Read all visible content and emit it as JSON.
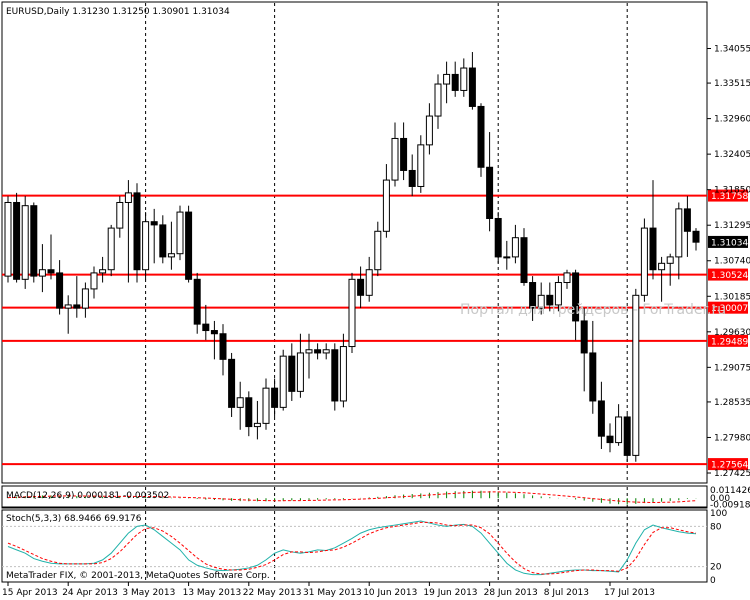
{
  "header": {
    "symbol_info": "EURUSD,Daily  1.31230 1.31250 1.30901 1.31034",
    "watermark": "Портал для трейдеров - ForTrader.ru",
    "copyright": "MetaTrader FIX, © 2001-2013, MetaQuotes Software Corp."
  },
  "colors": {
    "candle_up_fill": "#ffffff",
    "candle_down_fill": "#000000",
    "level_line": "#ff0000",
    "level_label_bg": "#ff0000",
    "current_price_bg": "#000000",
    "macd_hist": "#008000",
    "macd_signal": "#ff0000",
    "stoch_main": "#20b2aa",
    "stoch_signal": "#ff0000",
    "grid": "#000000"
  },
  "chart_data": [
    {
      "type": "candlestick",
      "title": "EURUSD,Daily",
      "ylim": [
        1.273,
        1.3475
      ],
      "y_ticks": [
        "1.34055",
        "1.33515",
        "1.32960",
        "1.32405",
        "1.31850",
        "1.31295",
        "1.30740",
        "1.30185",
        "1.29630",
        "1.29075",
        "1.28535",
        "1.27980",
        "1.27425"
      ],
      "y_tick_values": [
        1.34055,
        1.33515,
        1.3296,
        1.32405,
        1.3185,
        1.31295,
        1.3074,
        1.30185,
        1.2963,
        1.29075,
        1.28535,
        1.2798,
        1.27425
      ],
      "x_labels": [
        "15 Apr 2013",
        "24 Apr 2013",
        "3 May 2013",
        "13 May 2013",
        "22 May 2013",
        "31 May 2013",
        "10 Jun 2013",
        "19 Jun 2013",
        "28 Jun 2013",
        "8 Jul 2013",
        "17 Jul 2013"
      ],
      "x_label_index": [
        0,
        7,
        14,
        21,
        28,
        35,
        42,
        49,
        56,
        63,
        70
      ],
      "vertical_dashed_index": [
        16,
        31,
        57,
        72
      ],
      "levels": [
        {
          "label": "1.31758",
          "value": 1.31758
        },
        {
          "label": "1.30524",
          "value": 1.30524
        },
        {
          "label": "1.30007",
          "value": 1.30007
        },
        {
          "label": "1.29489",
          "value": 1.29489
        },
        {
          "label": "1.27564",
          "value": 1.27564
        }
      ],
      "current_price": {
        "label": "1.31034",
        "value": 1.31034
      },
      "ohlc": [
        [
          1.305,
          1.3175,
          1.304,
          1.3165
        ],
        [
          1.3165,
          1.318,
          1.304,
          1.3045
        ],
        [
          1.3045,
          1.3175,
          1.303,
          1.316
        ],
        [
          1.316,
          1.3165,
          1.304,
          1.305
        ],
        [
          1.305,
          1.31,
          1.3025,
          1.306
        ],
        [
          1.306,
          1.3115,
          1.3045,
          1.3055
        ],
        [
          1.3055,
          1.3075,
          1.299,
          1.3
        ],
        [
          1.3,
          1.302,
          1.296,
          1.3005
        ],
        [
          1.3005,
          1.305,
          1.2985,
          1.3
        ],
        [
          1.3,
          1.304,
          1.2985,
          1.303
        ],
        [
          1.303,
          1.3065,
          1.3015,
          1.3055
        ],
        [
          1.3055,
          1.308,
          1.304,
          1.306
        ],
        [
          1.306,
          1.313,
          1.305,
          1.3125
        ],
        [
          1.3125,
          1.3175,
          1.311,
          1.3165
        ],
        [
          1.3165,
          1.32,
          1.304,
          1.318
        ],
        [
          1.318,
          1.3195,
          1.304,
          1.306
        ],
        [
          1.306,
          1.315,
          1.3045,
          1.3135
        ],
        [
          1.3135,
          1.3155,
          1.307,
          1.313
        ],
        [
          1.313,
          1.3145,
          1.307,
          1.308
        ],
        [
          1.308,
          1.3135,
          1.306,
          1.3085
        ],
        [
          1.3085,
          1.316,
          1.3075,
          1.315
        ],
        [
          1.315,
          1.316,
          1.304,
          1.3045
        ],
        [
          1.3045,
          1.3055,
          1.296,
          1.2975
        ],
        [
          1.2975,
          1.3005,
          1.295,
          1.2965
        ],
        [
          1.2965,
          1.298,
          1.292,
          1.296
        ],
        [
          1.296,
          1.2975,
          1.2895,
          1.292
        ],
        [
          1.292,
          1.293,
          1.283,
          1.2845
        ],
        [
          1.2845,
          1.2885,
          1.281,
          1.286
        ],
        [
          1.286,
          1.287,
          1.28,
          1.2815
        ],
        [
          1.2815,
          1.2855,
          1.2795,
          1.282
        ],
        [
          1.282,
          1.289,
          1.281,
          1.2875
        ],
        [
          1.2875,
          1.289,
          1.283,
          1.2845
        ],
        [
          1.2845,
          1.2935,
          1.284,
          1.2925
        ],
        [
          1.2925,
          1.2945,
          1.2855,
          1.287
        ],
        [
          1.287,
          1.296,
          1.286,
          1.293
        ],
        [
          1.293,
          1.296,
          1.289,
          1.2935
        ],
        [
          1.2935,
          1.2945,
          1.292,
          1.293
        ],
        [
          1.293,
          1.2945,
          1.292,
          1.2935
        ],
        [
          1.2935,
          1.2945,
          1.284,
          1.2855
        ],
        [
          1.2855,
          1.296,
          1.2845,
          1.294
        ],
        [
          1.294,
          1.3055,
          1.293,
          1.3045
        ],
        [
          1.3045,
          1.3065,
          1.3,
          1.302
        ],
        [
          1.302,
          1.308,
          1.301,
          1.306
        ],
        [
          1.306,
          1.3135,
          1.305,
          1.312
        ],
        [
          1.312,
          1.3225,
          1.311,
          1.32
        ],
        [
          1.32,
          1.329,
          1.319,
          1.3265
        ],
        [
          1.3265,
          1.329,
          1.32,
          1.3215
        ],
        [
          1.3215,
          1.324,
          1.3175,
          1.319
        ],
        [
          1.319,
          1.327,
          1.318,
          1.3255
        ],
        [
          1.3255,
          1.332,
          1.324,
          1.33
        ],
        [
          1.33,
          1.3365,
          1.328,
          1.335
        ],
        [
          1.335,
          1.3385,
          1.332,
          1.3365
        ],
        [
          1.3365,
          1.3385,
          1.333,
          1.334
        ],
        [
          1.334,
          1.339,
          1.333,
          1.3375
        ],
        [
          1.3375,
          1.34,
          1.331,
          1.3315
        ],
        [
          1.3315,
          1.332,
          1.3205,
          1.322
        ],
        [
          1.322,
          1.3275,
          1.312,
          1.314
        ],
        [
          1.314,
          1.315,
          1.307,
          1.308
        ],
        [
          1.308,
          1.3105,
          1.306,
          1.308
        ],
        [
          1.308,
          1.313,
          1.307,
          1.311
        ],
        [
          1.311,
          1.3125,
          1.3035,
          1.304
        ],
        [
          1.304,
          1.305,
          1.298,
          1.3
        ],
        [
          1.3,
          1.304,
          1.299,
          1.302
        ],
        [
          1.302,
          1.304,
          1.2995,
          1.3005
        ],
        [
          1.3005,
          1.305,
          1.2995,
          1.304
        ],
        [
          1.304,
          1.306,
          1.303,
          1.3055
        ],
        [
          1.3055,
          1.306,
          1.295,
          1.298
        ],
        [
          1.298,
          1.3,
          1.287,
          1.293
        ],
        [
          1.293,
          1.298,
          1.2835,
          1.2855
        ],
        [
          1.2855,
          1.2885,
          1.278,
          1.28
        ],
        [
          1.28,
          1.282,
          1.2775,
          1.279
        ],
        [
          1.279,
          1.285,
          1.2785,
          1.283
        ],
        [
          1.283,
          1.2835,
          1.276,
          1.277
        ],
        [
          1.277,
          1.303,
          1.276,
          1.302
        ],
        [
          1.302,
          1.314,
          1.301,
          1.3125
        ],
        [
          1.3125,
          1.32,
          1.3045,
          1.306
        ],
        [
          1.306,
          1.308,
          1.301,
          1.307
        ],
        [
          1.307,
          1.3085,
          1.3035,
          1.308
        ],
        [
          1.308,
          1.3165,
          1.3045,
          1.3155
        ],
        [
          1.3155,
          1.3175,
          1.308,
          1.312
        ],
        [
          1.312,
          1.3125,
          1.309,
          1.3103
        ]
      ]
    },
    {
      "type": "bar",
      "title": "MACD(12,26,9) 0.000181 -0.003502",
      "ylim": [
        -0.0112,
        0.0132
      ],
      "y_ticks": [
        "0.011426",
        "0.00",
        "-0.009187"
      ],
      "y_tick_values": [
        0.011426,
        0.0,
        -0.009187
      ],
      "series": [
        {
          "name": "MACD",
          "values": [
            0.001,
            0.002,
            0.003,
            0.0035,
            0.004,
            0.004,
            0.0038,
            0.0035,
            0.003,
            0.0026,
            0.0024,
            0.0022,
            0.0022,
            0.0024,
            0.0026,
            0.0022,
            0.0018,
            0.0014,
            0.001,
            0.0006,
            0.0004,
            -0.0004,
            -0.0012,
            -0.002,
            -0.0026,
            -0.0032,
            -0.0038,
            -0.0042,
            -0.0044,
            -0.0044,
            -0.0043,
            -0.004,
            -0.0036,
            -0.0032,
            -0.0028,
            -0.0024,
            -0.002,
            -0.0016,
            -0.0014,
            -0.0012,
            -0.0004,
            0.0004,
            0.0012,
            0.002,
            0.003,
            0.0042,
            0.0052,
            0.006,
            0.0068,
            0.0078,
            0.0088,
            0.0095,
            0.01,
            0.0105,
            0.0108,
            0.0106,
            0.01,
            0.009,
            0.008,
            0.007,
            0.0056,
            0.004,
            0.0026,
            0.0014,
            0.0004,
            -0.0004,
            -0.0018,
            -0.0034,
            -0.005,
            -0.0066,
            -0.0078,
            -0.0086,
            -0.0092,
            -0.0082,
            -0.007,
            -0.006,
            -0.005,
            -0.004,
            -0.003,
            -0.001,
            0.0002
          ]
        },
        {
          "name": "Signal",
          "values": [
            0.0008,
            0.0012,
            0.0018,
            0.0022,
            0.0026,
            0.003,
            0.0032,
            0.0033,
            0.0032,
            0.0031,
            0.003,
            0.0028,
            0.0027,
            0.0026,
            0.0026,
            0.0025,
            0.0024,
            0.0022,
            0.002,
            0.0017,
            0.0014,
            0.001,
            0.0006,
            0.0002,
            -0.0004,
            -0.001,
            -0.0016,
            -0.0022,
            -0.0027,
            -0.0031,
            -0.0034,
            -0.0036,
            -0.0036,
            -0.0035,
            -0.0034,
            -0.0032,
            -0.003,
            -0.0027,
            -0.0024,
            -0.0022,
            -0.0018,
            -0.0013,
            -0.0008,
            -0.0002,
            0.0006,
            0.0014,
            0.0022,
            0.003,
            0.0038,
            0.0046,
            0.0054,
            0.0062,
            0.007,
            0.0077,
            0.0083,
            0.0088,
            0.009,
            0.009,
            0.0088,
            0.0084,
            0.0078,
            0.007,
            0.006,
            0.005,
            0.004,
            0.003,
            0.0018,
            0.0006,
            -0.0006,
            -0.0018,
            -0.003,
            -0.004,
            -0.005,
            -0.0056,
            -0.006,
            -0.0062,
            -0.006,
            -0.0057,
            -0.0052,
            -0.0044,
            -0.0035
          ]
        }
      ]
    },
    {
      "type": "line",
      "title": "Stoch(5,3,3) 68.9466 69.9176",
      "ylim": [
        0,
        100
      ],
      "y_ticks": [
        "100",
        "80",
        "20",
        "0"
      ],
      "y_tick_values": [
        100,
        80,
        20,
        0
      ],
      "series": [
        {
          "name": "Main",
          "values": [
            50,
            45,
            40,
            32,
            28,
            25,
            24,
            24,
            24,
            24,
            25,
            30,
            40,
            55,
            70,
            80,
            82,
            75,
            65,
            55,
            45,
            30,
            22,
            18,
            15,
            14,
            15,
            16,
            18,
            22,
            30,
            40,
            45,
            42,
            40,
            42,
            45,
            44,
            48,
            55,
            62,
            70,
            75,
            78,
            80,
            82,
            84,
            86,
            88,
            85,
            82,
            80,
            82,
            83,
            80,
            70,
            55,
            40,
            25,
            15,
            10,
            8,
            8,
            10,
            12,
            14,
            15,
            15,
            14,
            14,
            13,
            12,
            30,
            55,
            75,
            82,
            78,
            75,
            72,
            70,
            69
          ]
        },
        {
          "name": "Signal",
          "values": [
            55,
            50,
            44,
            38,
            32,
            28,
            25,
            24,
            24,
            24,
            24,
            26,
            32,
            42,
            55,
            68,
            77,
            78,
            73,
            65,
            55,
            44,
            33,
            24,
            19,
            16,
            15,
            15,
            16,
            19,
            23,
            30,
            38,
            42,
            42,
            41,
            42,
            44,
            45,
            49,
            55,
            62,
            69,
            74,
            78,
            80,
            82,
            84,
            86,
            86,
            85,
            82,
            81,
            82,
            82,
            78,
            69,
            55,
            40,
            27,
            17,
            11,
            9,
            9,
            10,
            12,
            14,
            15,
            15,
            14,
            14,
            13,
            18,
            32,
            53,
            71,
            78,
            78,
            75,
            72,
            70
          ]
        }
      ]
    }
  ]
}
